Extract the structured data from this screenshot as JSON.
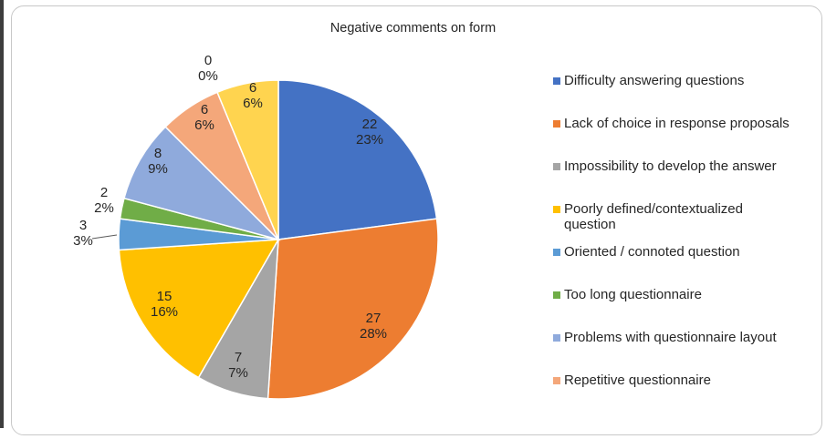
{
  "chart_data": {
    "type": "pie",
    "title": "Negative comments on form",
    "legend_position": "right",
    "slices": [
      {
        "label": "Difficulty answering questions",
        "value": 22,
        "percent": "23%",
        "color": "#4472C4"
      },
      {
        "label": "Lack of choice in response proposals",
        "value": 27,
        "percent": "28%",
        "color": "#ED7D31"
      },
      {
        "label": "Impossibility to develop the answer",
        "value": 7,
        "percent": "7%",
        "color": "#A5A5A5"
      },
      {
        "label": "Poorly defined/contextualized question",
        "value": 15,
        "percent": "16%",
        "color": "#FFC000"
      },
      {
        "label": "Oriented / connoted question",
        "value": 3,
        "percent": "3%",
        "color": "#5B9BD5"
      },
      {
        "label": "Too long questionnaire",
        "value": 2,
        "percent": "2%",
        "color": "#70AD47"
      },
      {
        "label": "Problems with questionnaire layout",
        "value": 8,
        "percent": "9%",
        "color": "#8FAADC"
      },
      {
        "label": "Repetitive questionnaire",
        "value": 6,
        "percent": "6%",
        "color": "#F4A77A"
      },
      {
        "label": "",
        "value": 0,
        "percent": "0%",
        "color": "#FFD966"
      },
      {
        "label": "",
        "value": 6,
        "percent": "6%",
        "color": "#FFD44F"
      }
    ]
  }
}
